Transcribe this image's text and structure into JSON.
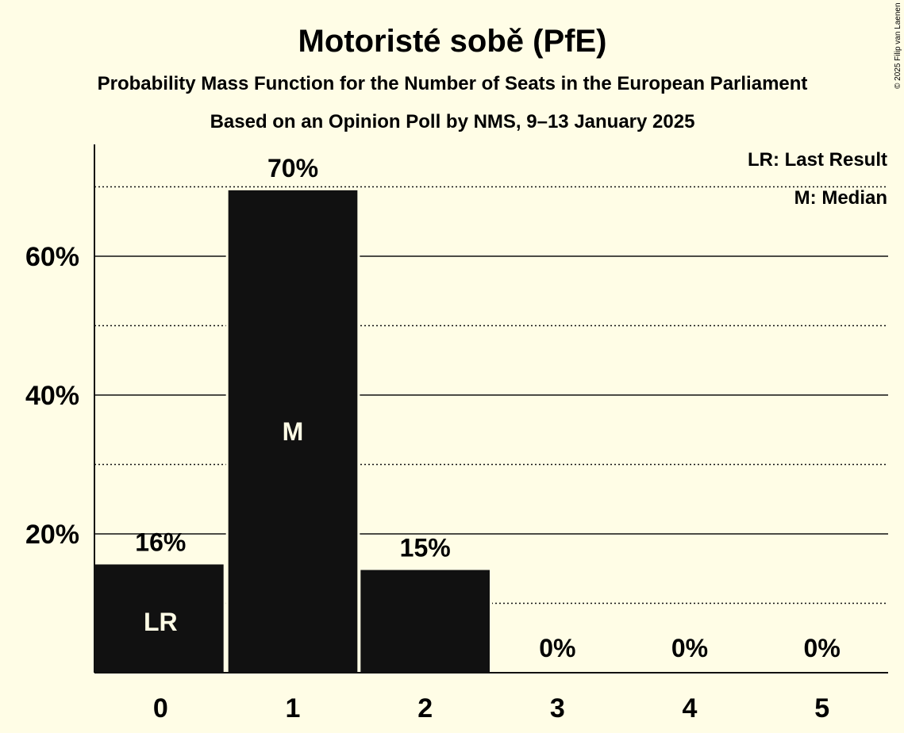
{
  "chart_data": {
    "type": "bar",
    "title": "Motoristé sobě (PfE)",
    "subtitle": "Probability Mass Function for the Number of Seats in the European Parliament",
    "subtitle2": "Based on an Opinion Poll by NMS, 9–13 January 2025",
    "credit": "© 2025 Filip van Laenen",
    "categories": [
      "0",
      "1",
      "2",
      "3",
      "4",
      "5"
    ],
    "values": [
      15.6,
      69.5,
      14.8,
      0,
      0,
      0
    ],
    "value_labels": [
      "16%",
      "70%",
      "15%",
      "0%",
      "0%",
      "0%"
    ],
    "bar_markers": [
      "LR",
      "M",
      "",
      "",
      "",
      ""
    ],
    "ylim": [
      0,
      76
    ],
    "y_ticks": [
      20,
      40,
      60
    ],
    "y_tick_labels": [
      "20%",
      "40%",
      "60%"
    ],
    "dotted_gridlines": [
      10,
      30,
      50,
      70
    ],
    "legend": [
      "LR: Last Result",
      "M: Median"
    ],
    "legend_position": "top-right",
    "bar_color": "#111111",
    "background_color": "#fffde6"
  }
}
